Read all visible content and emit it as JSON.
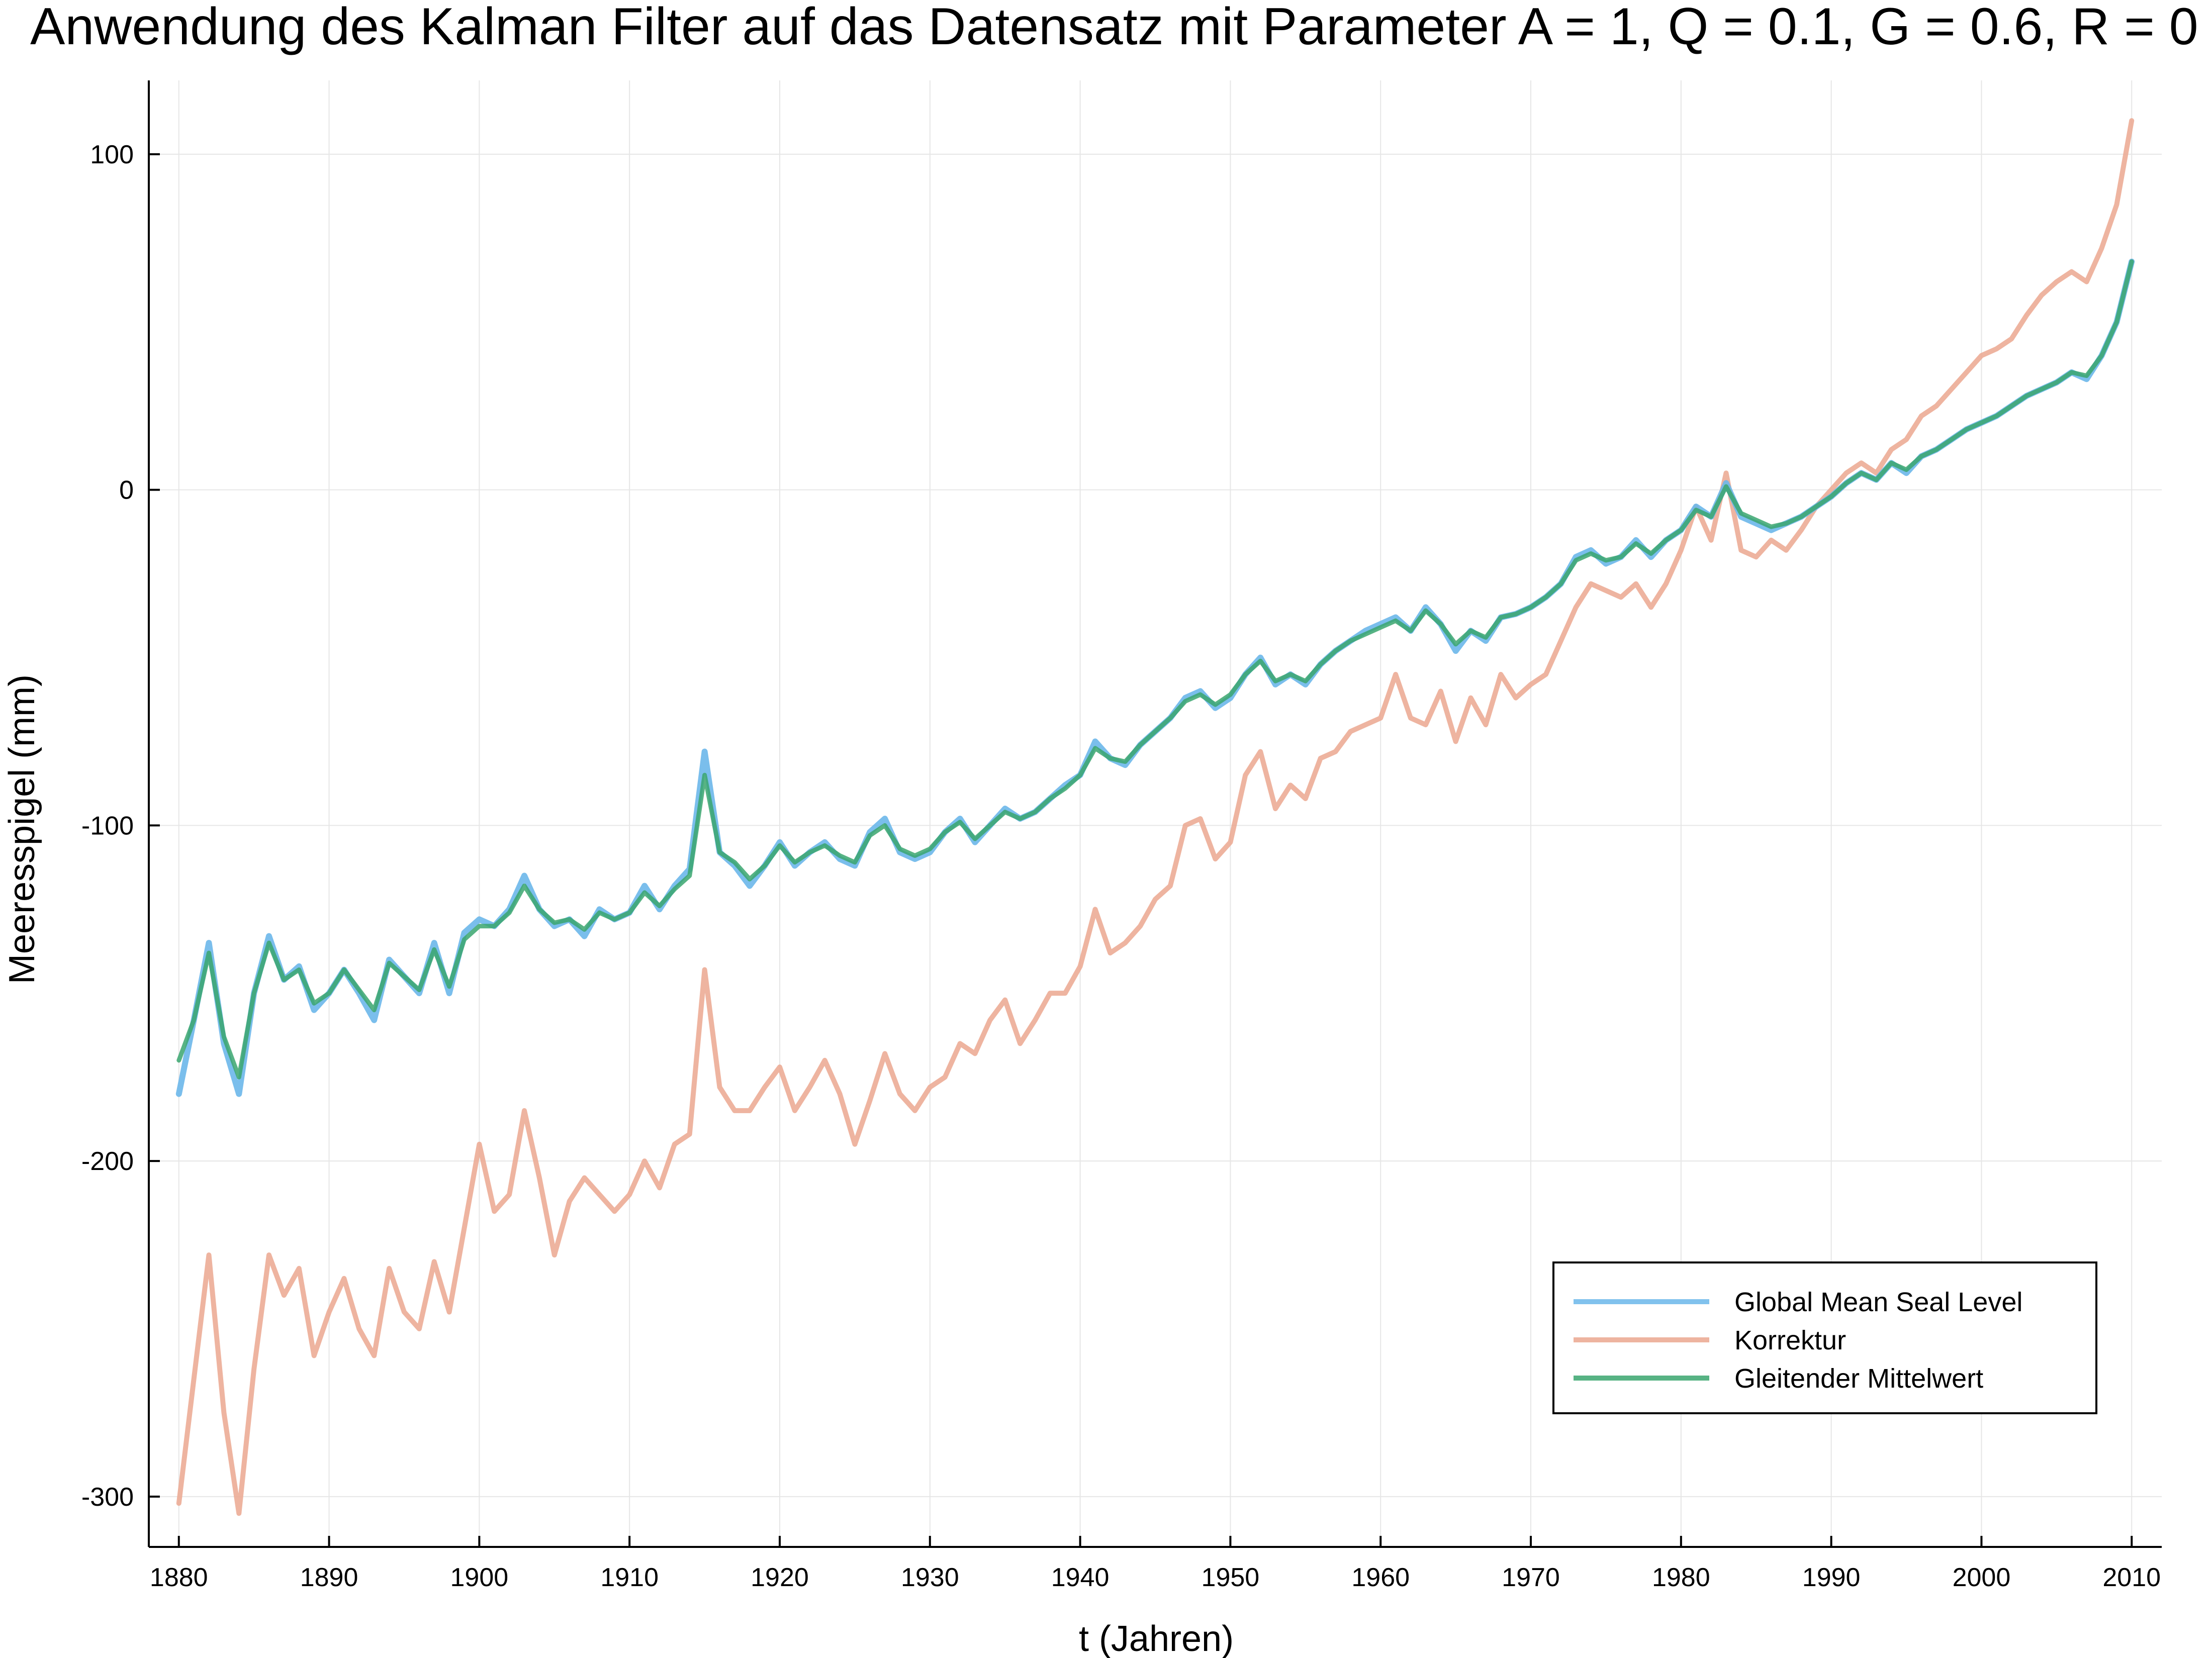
{
  "chart_data": {
    "type": "line",
    "title": "Anwendung des Kalman Filter auf das Datensatz mit Parameter A = 1, Q = 0.1, G = 0.6, R = 0",
    "xlabel": "t (Jahren)",
    "ylabel": "Meeresspigel (mm)",
    "xlim": [
      1878,
      2012
    ],
    "ylim": [
      -315,
      122
    ],
    "xticks": [
      1880,
      1890,
      1900,
      1910,
      1920,
      1930,
      1940,
      1950,
      1960,
      1970,
      1980,
      1990,
      2000,
      2010
    ],
    "yticks": [
      -300,
      -200,
      -100,
      0,
      100
    ],
    "grid": true,
    "legend_position": "bottom-right",
    "colors": {
      "global": "#6bb7ea",
      "korrektur": "#eba78f",
      "gleitend": "#3aa66e"
    },
    "series": [
      {
        "name": "Global Mean Seal Level",
        "x": [
          1880,
          1881,
          1882,
          1883,
          1884,
          1885,
          1886,
          1887,
          1888,
          1889,
          1890,
          1891,
          1892,
          1893,
          1894,
          1895,
          1896,
          1897,
          1898,
          1899,
          1900,
          1901,
          1902,
          1903,
          1904,
          1905,
          1906,
          1907,
          1908,
          1909,
          1910,
          1911,
          1912,
          1913,
          1914,
          1915,
          1916,
          1917,
          1918,
          1919,
          1920,
          1921,
          1922,
          1923,
          1924,
          1925,
          1926,
          1927,
          1928,
          1929,
          1930,
          1931,
          1932,
          1933,
          1934,
          1935,
          1936,
          1937,
          1938,
          1939,
          1940,
          1941,
          1942,
          1943,
          1944,
          1945,
          1946,
          1947,
          1948,
          1949,
          1950,
          1951,
          1952,
          1953,
          1954,
          1955,
          1956,
          1957,
          1958,
          1959,
          1960,
          1961,
          1962,
          1963,
          1964,
          1965,
          1966,
          1967,
          1968,
          1969,
          1970,
          1971,
          1972,
          1973,
          1974,
          1975,
          1976,
          1977,
          1978,
          1979,
          1980,
          1981,
          1982,
          1983,
          1984,
          1985,
          1986,
          1987,
          1988,
          1989,
          1990,
          1991,
          1992,
          1993,
          1994,
          1995,
          1996,
          1997,
          1998,
          1999,
          2000,
          2001,
          2002,
          2003,
          2004,
          2005,
          2006,
          2007,
          2008,
          2009,
          2010
        ],
        "values": [
          -180,
          -158,
          -135,
          -165,
          -180,
          -150,
          -133,
          -146,
          -142,
          -155,
          -150,
          -143,
          -150,
          -158,
          -140,
          -145,
          -150,
          -135,
          -150,
          -132,
          -128,
          -130,
          -125,
          -115,
          -125,
          -130,
          -128,
          -133,
          -125,
          -128,
          -126,
          -118,
          -125,
          -118,
          -113,
          -78,
          -108,
          -112,
          -118,
          -112,
          -105,
          -112,
          -108,
          -105,
          -110,
          -112,
          -102,
          -98,
          -108,
          -110,
          -108,
          -102,
          -98,
          -105,
          -100,
          -95,
          -98,
          -96,
          -92,
          -88,
          -85,
          -75,
          -80,
          -82,
          -76,
          -72,
          -68,
          -62,
          -60,
          -65,
          -62,
          -55,
          -50,
          -58,
          -55,
          -58,
          -52,
          -48,
          -45,
          -42,
          -40,
          -38,
          -42,
          -35,
          -40,
          -48,
          -42,
          -45,
          -38,
          -37,
          -35,
          -32,
          -28,
          -20,
          -18,
          -22,
          -20,
          -15,
          -20,
          -15,
          -12,
          -5,
          -8,
          2,
          -8,
          -10,
          -12,
          -10,
          -8,
          -5,
          -2,
          2,
          5,
          3,
          8,
          5,
          10,
          12,
          15,
          18,
          20,
          22,
          25,
          28,
          30,
          32,
          35,
          33,
          40,
          50,
          68
        ]
      },
      {
        "name": "Korrektur",
        "x": [
          1880,
          1881,
          1882,
          1883,
          1884,
          1885,
          1886,
          1887,
          1888,
          1889,
          1890,
          1891,
          1892,
          1893,
          1894,
          1895,
          1896,
          1897,
          1898,
          1899,
          1900,
          1901,
          1902,
          1903,
          1904,
          1905,
          1906,
          1907,
          1908,
          1909,
          1910,
          1911,
          1912,
          1913,
          1914,
          1915,
          1916,
          1917,
          1918,
          1919,
          1920,
          1921,
          1922,
          1923,
          1924,
          1925,
          1926,
          1927,
          1928,
          1929,
          1930,
          1931,
          1932,
          1933,
          1934,
          1935,
          1936,
          1937,
          1938,
          1939,
          1940,
          1941,
          1942,
          1943,
          1944,
          1945,
          1946,
          1947,
          1948,
          1949,
          1950,
          1951,
          1952,
          1953,
          1954,
          1955,
          1956,
          1957,
          1958,
          1959,
          1960,
          1961,
          1962,
          1963,
          1964,
          1965,
          1966,
          1967,
          1968,
          1969,
          1970,
          1971,
          1972,
          1973,
          1974,
          1975,
          1976,
          1977,
          1978,
          1979,
          1980,
          1981,
          1982,
          1983,
          1984,
          1985,
          1986,
          1987,
          1988,
          1989,
          1990,
          1991,
          1992,
          1993,
          1994,
          1995,
          1996,
          1997,
          1998,
          1999,
          2000,
          2001,
          2002,
          2003,
          2004,
          2005,
          2006,
          2007,
          2008,
          2009,
          2010
        ],
        "values": [
          -302,
          -265,
          -228,
          -275,
          -305,
          -262,
          -228,
          -240,
          -232,
          -258,
          -245,
          -235,
          -250,
          -258,
          -232,
          -245,
          -250,
          -230,
          -245,
          -220,
          -195,
          -215,
          -210,
          -185,
          -205,
          -228,
          -212,
          -205,
          -210,
          -215,
          -210,
          -200,
          -208,
          -195,
          -192,
          -143,
          -178,
          -185,
          -185,
          -178,
          -172,
          -185,
          -178,
          -170,
          -180,
          -195,
          -182,
          -168,
          -180,
          -185,
          -178,
          -175,
          -165,
          -168,
          -158,
          -152,
          -165,
          -158,
          -150,
          -150,
          -142,
          -125,
          -138,
          -135,
          -130,
          -122,
          -118,
          -100,
          -98,
          -110,
          -105,
          -85,
          -78,
          -95,
          -88,
          -92,
          -80,
          -78,
          -72,
          -70,
          -68,
          -55,
          -68,
          -70,
          -60,
          -75,
          -62,
          -70,
          -55,
          -62,
          -58,
          -55,
          -45,
          -35,
          -28,
          -30,
          -32,
          -28,
          -35,
          -28,
          -18,
          -5,
          -15,
          5,
          -18,
          -20,
          -15,
          -18,
          -12,
          -5,
          0,
          5,
          8,
          5,
          12,
          15,
          22,
          25,
          30,
          35,
          40,
          42,
          45,
          52,
          58,
          62,
          65,
          62,
          72,
          85,
          110
        ]
      },
      {
        "name": "Gleitender Mittelwert",
        "x": [
          1880,
          1881,
          1882,
          1883,
          1884,
          1885,
          1886,
          1887,
          1888,
          1889,
          1890,
          1891,
          1892,
          1893,
          1894,
          1895,
          1896,
          1897,
          1898,
          1899,
          1900,
          1901,
          1902,
          1903,
          1904,
          1905,
          1906,
          1907,
          1908,
          1909,
          1910,
          1911,
          1912,
          1913,
          1914,
          1915,
          1916,
          1917,
          1918,
          1919,
          1920,
          1921,
          1922,
          1923,
          1924,
          1925,
          1926,
          1927,
          1928,
          1929,
          1930,
          1931,
          1932,
          1933,
          1934,
          1935,
          1936,
          1937,
          1938,
          1939,
          1940,
          1941,
          1942,
          1943,
          1944,
          1945,
          1946,
          1947,
          1948,
          1949,
          1950,
          1951,
          1952,
          1953,
          1954,
          1955,
          1956,
          1957,
          1958,
          1959,
          1960,
          1961,
          1962,
          1963,
          1964,
          1965,
          1966,
          1967,
          1968,
          1969,
          1970,
          1971,
          1972,
          1973,
          1974,
          1975,
          1976,
          1977,
          1978,
          1979,
          1980,
          1981,
          1982,
          1983,
          1984,
          1985,
          1986,
          1987,
          1988,
          1989,
          1990,
          1991,
          1992,
          1993,
          1994,
          1995,
          1996,
          1997,
          1998,
          1999,
          2000,
          2001,
          2002,
          2003,
          2004,
          2005,
          2006,
          2007,
          2008,
          2009,
          2010
        ],
        "values": [
          -170,
          -158,
          -138,
          -163,
          -175,
          -150,
          -135,
          -146,
          -143,
          -153,
          -150,
          -143,
          -149,
          -155,
          -141,
          -145,
          -149,
          -137,
          -148,
          -134,
          -130,
          -130,
          -126,
          -118,
          -125,
          -129,
          -128,
          -131,
          -126,
          -128,
          -126,
          -120,
          -124,
          -119,
          -115,
          -85,
          -108,
          -111,
          -116,
          -112,
          -106,
          -111,
          -108,
          -106,
          -109,
          -111,
          -103,
          -100,
          -107,
          -109,
          -107,
          -102,
          -99,
          -104,
          -100,
          -96,
          -98,
          -96,
          -92,
          -89,
          -85,
          -77,
          -80,
          -81,
          -76,
          -72,
          -68,
          -63,
          -61,
          -64,
          -61,
          -55,
          -51,
          -57,
          -55,
          -57,
          -52,
          -48,
          -45,
          -43,
          -41,
          -39,
          -42,
          -36,
          -40,
          -46,
          -42,
          -44,
          -38,
          -37,
          -35,
          -32,
          -28,
          -21,
          -19,
          -21,
          -20,
          -16,
          -19,
          -15,
          -12,
          -6,
          -8,
          1,
          -7,
          -9,
          -11,
          -10,
          -8,
          -5,
          -2,
          2,
          5,
          3,
          8,
          6,
          10,
          12,
          15,
          18,
          20,
          22,
          25,
          28,
          30,
          32,
          35,
          34,
          40,
          50,
          68
        ]
      }
    ]
  }
}
